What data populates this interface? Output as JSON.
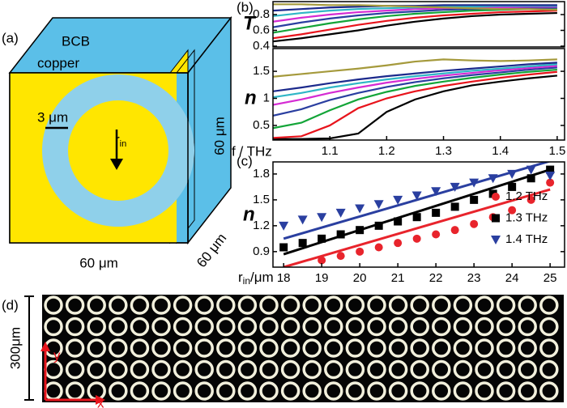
{
  "panel_a": {
    "label": "(a)",
    "top_material": "BCB",
    "plate_material": "copper",
    "width_label": "3 μm",
    "radius_main": "r",
    "radius_sub": "in",
    "height_label": "60 μm",
    "bottom_label": "60 μm",
    "depth_label": "60 μm"
  },
  "chart_data": [
    {
      "type": "line",
      "panel_label": "(b)",
      "y_label": "T",
      "xlim": [
        1.0,
        1.513
      ],
      "ylim": [
        0.39,
        0.964
      ],
      "yticks": [
        0.4,
        0.6,
        0.8
      ],
      "x": [
        1.0,
        1.05,
        1.1,
        1.15,
        1.2,
        1.25,
        1.3,
        1.35,
        1.4,
        1.45,
        1.5
      ],
      "series": [
        {
          "color": "#000000",
          "values": [
            0.46,
            0.5,
            0.55,
            0.6,
            0.66,
            0.71,
            0.75,
            0.78,
            0.8,
            0.81,
            0.82
          ]
        },
        {
          "color": "#e8141c",
          "values": [
            0.5,
            0.55,
            0.61,
            0.67,
            0.72,
            0.76,
            0.79,
            0.81,
            0.83,
            0.84,
            0.85
          ]
        },
        {
          "color": "#13a538",
          "values": [
            0.57,
            0.63,
            0.69,
            0.74,
            0.78,
            0.81,
            0.83,
            0.85,
            0.86,
            0.87,
            0.87
          ]
        },
        {
          "color": "#2a3fa0",
          "values": [
            0.64,
            0.7,
            0.75,
            0.79,
            0.82,
            0.84,
            0.86,
            0.87,
            0.88,
            0.88,
            0.89
          ]
        },
        {
          "color": "#d52bd3",
          "values": [
            0.71,
            0.76,
            0.8,
            0.83,
            0.85,
            0.87,
            0.88,
            0.89,
            0.89,
            0.9,
            0.9
          ]
        },
        {
          "color": "#2fb6c6",
          "values": [
            0.78,
            0.82,
            0.85,
            0.87,
            0.88,
            0.89,
            0.9,
            0.9,
            0.91,
            0.91,
            0.91
          ]
        },
        {
          "color": "#1c2a8c",
          "values": [
            0.85,
            0.87,
            0.89,
            0.9,
            0.91,
            0.91,
            0.92,
            0.92,
            0.92,
            0.92,
            0.92
          ]
        },
        {
          "color": "#a59a3c",
          "values": [
            0.93,
            0.93,
            0.92,
            0.92,
            0.91,
            0.9,
            0.89,
            0.88,
            0.87,
            0.87,
            0.86
          ]
        }
      ]
    },
    {
      "type": "line",
      "y_label": "n",
      "x_label": "f / THz",
      "xlim": [
        1.0,
        1.513
      ],
      "ylim": [
        0.23,
        1.92
      ],
      "xticks": [
        1.1,
        1.2,
        1.3,
        1.4,
        1.5
      ],
      "yticks": [
        0.5,
        1.0,
        1.5
      ],
      "x": [
        1.0,
        1.05,
        1.1,
        1.15,
        1.2,
        1.25,
        1.3,
        1.35,
        1.4,
        1.45,
        1.5
      ],
      "series": [
        {
          "color": "#000000",
          "values": [
            0.25,
            0.25,
            0.26,
            0.35,
            0.75,
            0.98,
            1.13,
            1.24,
            1.31,
            1.37,
            1.42
          ]
        },
        {
          "color": "#e8141c",
          "values": [
            0.27,
            0.3,
            0.5,
            0.82,
            1.0,
            1.13,
            1.23,
            1.31,
            1.38,
            1.44,
            1.49
          ]
        },
        {
          "color": "#13a538",
          "values": [
            0.45,
            0.55,
            0.78,
            0.98,
            1.12,
            1.23,
            1.31,
            1.38,
            1.44,
            1.49,
            1.53
          ]
        },
        {
          "color": "#2a3fa0",
          "values": [
            0.68,
            0.8,
            0.97,
            1.1,
            1.21,
            1.3,
            1.37,
            1.43,
            1.48,
            1.53,
            1.57
          ]
        },
        {
          "color": "#d52bd3",
          "values": [
            0.88,
            0.98,
            1.1,
            1.2,
            1.29,
            1.36,
            1.42,
            1.47,
            1.52,
            1.56,
            1.6
          ]
        },
        {
          "color": "#2fb6c6",
          "values": [
            1.02,
            1.1,
            1.2,
            1.28,
            1.35,
            1.41,
            1.46,
            1.51,
            1.55,
            1.59,
            1.63
          ]
        },
        {
          "color": "#1c2a8c",
          "values": [
            1.13,
            1.2,
            1.28,
            1.35,
            1.41,
            1.46,
            1.51,
            1.55,
            1.59,
            1.63,
            1.66
          ]
        },
        {
          "color": "#a59a3c",
          "values": [
            1.4,
            1.45,
            1.5,
            1.55,
            1.61,
            1.68,
            1.72,
            1.7,
            1.69,
            1.7,
            1.72
          ]
        }
      ]
    },
    {
      "type": "scatter",
      "panel_label": "(c)",
      "y_label": "n",
      "x_label": {
        "main": "r",
        "sub": "in",
        "unit": "/μm"
      },
      "xlim": [
        17.72,
        25.38
      ],
      "ylim": [
        0.72,
        1.94
      ],
      "xticks": [
        18,
        19,
        20,
        21,
        22,
        23,
        24,
        25
      ],
      "yticks": [
        0.9,
        1.2,
        1.5,
        1.8
      ],
      "x": [
        18,
        18.5,
        19,
        19.5,
        20,
        20.5,
        21,
        21.5,
        22,
        22.5,
        23,
        23.5,
        24,
        24.5,
        25
      ],
      "fit_x": [
        18,
        25
      ],
      "series": [
        {
          "name": "1.2 THz",
          "color": "#e8242c",
          "marker": "circle",
          "values": [
            null,
            null,
            0.8,
            0.85,
            0.9,
            0.95,
            1.0,
            1.05,
            1.1,
            1.15,
            1.22,
            1.3,
            1.38,
            1.5,
            1.7
          ],
          "fit_y": [
            0.72,
            1.62
          ]
        },
        {
          "name": "1.3 THz",
          "color": "#000000",
          "marker": "square",
          "values": [
            0.95,
            1.0,
            1.05,
            1.1,
            1.15,
            1.2,
            1.25,
            1.3,
            1.35,
            1.42,
            1.5,
            1.57,
            1.65,
            1.75,
            1.85
          ],
          "fit_y": [
            0.87,
            1.85
          ]
        },
        {
          "name": "1.4 THz",
          "color": "#2a3fa0",
          "marker": "triangle",
          "values": [
            1.2,
            1.27,
            1.3,
            1.35,
            1.4,
            1.45,
            1.5,
            1.55,
            1.6,
            1.65,
            1.7,
            1.75,
            1.8,
            1.85,
            1.78
          ],
          "fit_y": [
            1.05,
            1.95
          ]
        }
      ]
    }
  ],
  "panel_d": {
    "label": "(d)",
    "scale_label": "300μm",
    "y_axis": "y",
    "x_axis": "x"
  }
}
